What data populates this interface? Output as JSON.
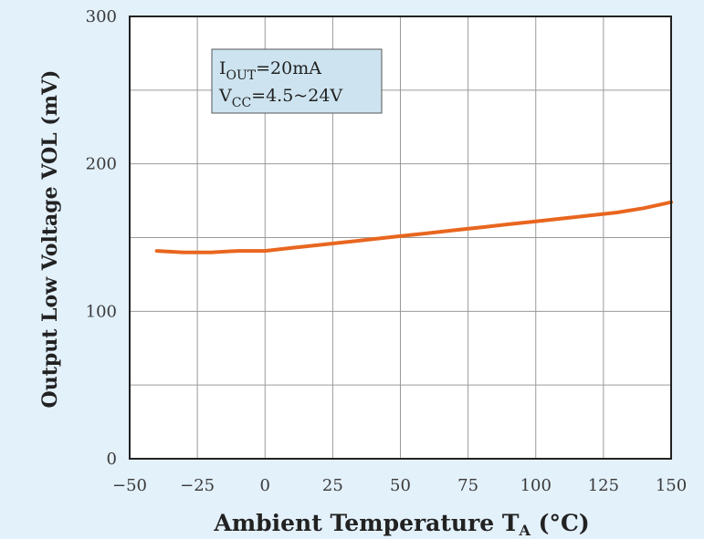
{
  "chart_data": {
    "type": "line",
    "title": "",
    "xlabel": "Ambient Temperature",
    "xlabel_symbol": "T",
    "xlabel_subscript": "A",
    "xlabel_unit": "(°C)",
    "ylabel": "Output Low Voltage VOL (mV)",
    "xlim": [
      -50,
      150
    ],
    "ylim": [
      0,
      300
    ],
    "x_ticks": [
      -50,
      -25,
      0,
      25,
      50,
      75,
      100,
      125,
      150
    ],
    "x_tick_labels": [
      "−50",
      "−25",
      "0",
      "25",
      "50",
      "75",
      "100",
      "125",
      "150"
    ],
    "y_ticks": [
      0,
      50,
      100,
      150,
      200,
      250,
      300
    ],
    "y_tick_labels": [
      "0",
      "",
      "100",
      "",
      "200",
      "",
      "300"
    ],
    "grid": true,
    "series": [
      {
        "color": "#e8661f",
        "x": [
          -40,
          -30,
          -20,
          -10,
          0,
          10,
          20,
          30,
          40,
          50,
          60,
          70,
          80,
          90,
          100,
          110,
          120,
          130,
          140,
          150
        ],
        "y": [
          141,
          140,
          140,
          141,
          141,
          143,
          145,
          147,
          149,
          151,
          153,
          155,
          157,
          159,
          161,
          163,
          165,
          167,
          170,
          174
        ]
      }
    ],
    "annotation": {
      "line1_main": "I",
      "line1_sub": "OUT",
      "line1_rest": "=20mA",
      "line2_main": "V",
      "line2_sub": "CC",
      "line2_rest": "=4.5~24V",
      "background": "#cde4f0"
    }
  }
}
